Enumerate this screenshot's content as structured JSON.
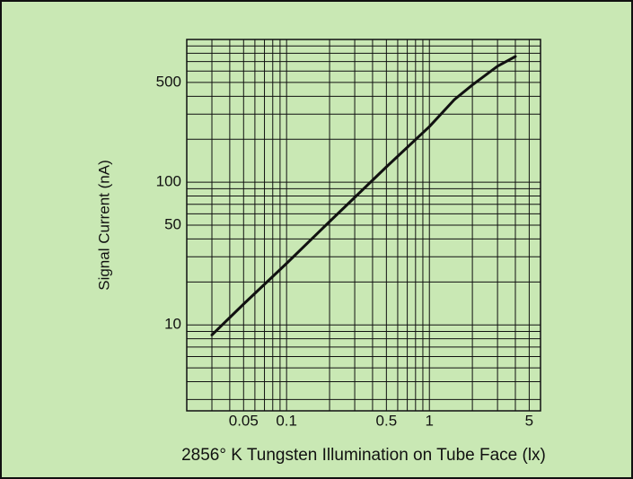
{
  "chart_data": {
    "type": "line",
    "xlabel": "2856° K Tungsten Illumination on Tube Face (lx)",
    "ylabel": "Signal Current (nA)",
    "x_log": true,
    "y_log": true,
    "xlim": [
      0.02,
      6
    ],
    "ylim": [
      2.5,
      1000
    ],
    "xticks": [
      0.05,
      0.1,
      0.5,
      1,
      5
    ],
    "yticks": [
      10,
      50,
      100,
      500
    ],
    "x_minor_grid": [
      0.02,
      0.03,
      0.04,
      0.06,
      0.07,
      0.08,
      0.09,
      0.2,
      0.3,
      0.4,
      0.6,
      0.7,
      0.8,
      0.9,
      2,
      3,
      4,
      6
    ],
    "y_minor_grid": [
      3,
      4,
      5,
      6,
      7,
      8,
      9,
      20,
      30,
      40,
      60,
      70,
      80,
      90,
      200,
      300,
      400,
      600,
      700,
      800,
      900,
      1000
    ],
    "grid": true,
    "background": "#c9e8b4",
    "series": [
      {
        "name": "Signal Current",
        "color": "#111111",
        "x": [
          0.03,
          0.05,
          0.1,
          0.2,
          0.5,
          1,
          1.5,
          2,
          3,
          4
        ],
        "values": [
          8.5,
          14,
          27,
          53,
          128,
          245,
          380,
          480,
          650,
          760
        ]
      }
    ]
  }
}
